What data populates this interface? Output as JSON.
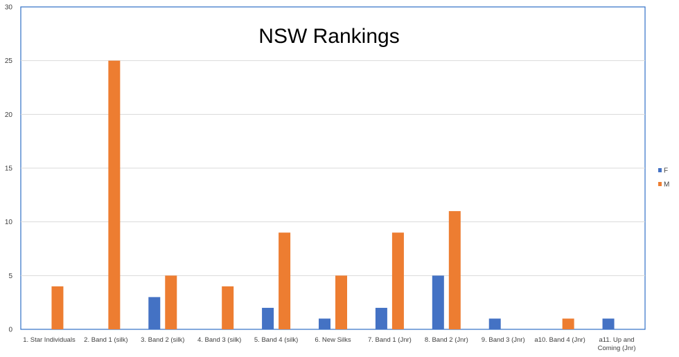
{
  "chart_data": {
    "type": "bar",
    "title": "NSW Rankings",
    "xlabel": "",
    "ylabel": "",
    "ylim": [
      0,
      30
    ],
    "yticks": [
      0,
      5,
      10,
      15,
      20,
      25,
      30
    ],
    "grid": true,
    "legend": "right",
    "categories": [
      [
        "1. Star Individuals"
      ],
      [
        "2. Band 1 (silk)"
      ],
      [
        "3. Band 2 (silk)"
      ],
      [
        "4. Band 3 (silk)"
      ],
      [
        "5. Band 4 (silk)"
      ],
      [
        "6. New Silks"
      ],
      [
        "7. Band 1 (Jnr)"
      ],
      [
        "8. Band 2 (Jnr)"
      ],
      [
        "9. Band 3 (Jnr)"
      ],
      [
        "a10. Band 4 (Jnr)"
      ],
      [
        "a11. Up and",
        "Coming (Jnr)"
      ]
    ],
    "series": [
      {
        "name": "F",
        "color": "#4472C4",
        "values": [
          0,
          0,
          3,
          0,
          2,
          1,
          2,
          5,
          1,
          0,
          1
        ]
      },
      {
        "name": "M",
        "color": "#ED7D31",
        "values": [
          4,
          25,
          5,
          4,
          9,
          5,
          9,
          11,
          0,
          1,
          0
        ]
      }
    ]
  }
}
